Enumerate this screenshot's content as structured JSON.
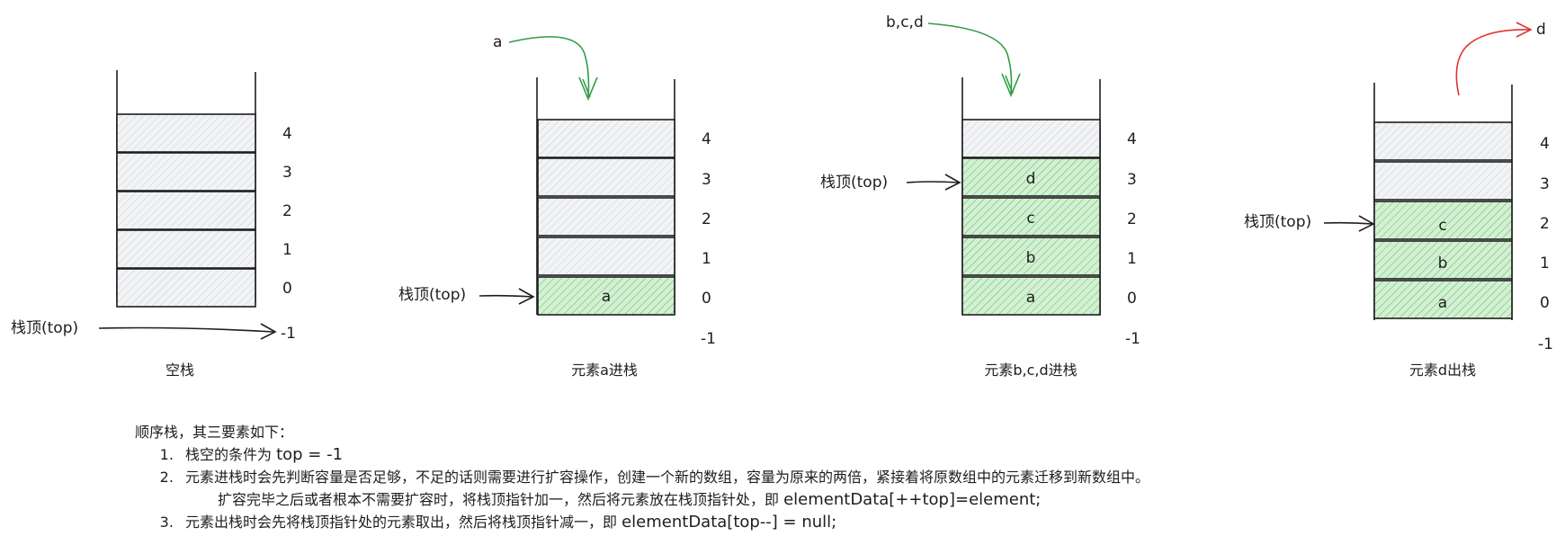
{
  "stacks": [
    {
      "caption": "空栈",
      "indices": [
        "4",
        "3",
        "2",
        "1",
        "0"
      ],
      "below_index": "-1",
      "top_label": "栈顶(top)",
      "cells": [
        "",
        "",
        "",
        "",
        ""
      ]
    },
    {
      "caption": "元素a进栈",
      "indices": [
        "4",
        "3",
        "2",
        "1",
        "0"
      ],
      "below_index": "-1",
      "top_label": "栈顶(top)",
      "push_label": "a",
      "cells": [
        "",
        "",
        "",
        "",
        "a"
      ]
    },
    {
      "caption": "元素b,c,d进栈",
      "indices": [
        "4",
        "3",
        "2",
        "1",
        "0"
      ],
      "below_index": "-1",
      "top_label": "栈顶(top)",
      "push_label": "b,c,d",
      "cells": [
        "",
        "d",
        "c",
        "b",
        "a"
      ]
    },
    {
      "caption": "元素d出栈",
      "indices": [
        "4",
        "3",
        "2",
        "1",
        "0"
      ],
      "below_index": "-1",
      "top_label": "栈顶(top)",
      "pop_label": "d",
      "cells": [
        "",
        "",
        "c",
        "b",
        "a"
      ]
    }
  ],
  "colors": {
    "empty_cell": "#f1f3f5",
    "filled_cell": "#c8ebc8",
    "push_arrow": "#2f9e44",
    "pop_arrow": "#e03131"
  },
  "notes": {
    "title": "顺序栈，其三要素如下：",
    "item1_text": "栈空的条件为 ",
    "item1_code": "top = -1",
    "item2_text": "元素进栈时会先判断容量是否足够，不足的话则需要进行扩容操作，创建一个新的数组，容量为原来的两倍，紧接着将原数组中的元素迁移到新数组中。",
    "item2_cont_text": "扩容完毕之后或者根本不需要扩容时，将栈顶指针加一，然后将元素放在栈顶指针处，即 ",
    "item2_code": "elementData[++top]=element;",
    "item3_text": "元素出栈时会先将栈顶指针处的元素取出，然后将栈顶指针减一，即 ",
    "item3_code": "elementData[top--] = null;"
  }
}
